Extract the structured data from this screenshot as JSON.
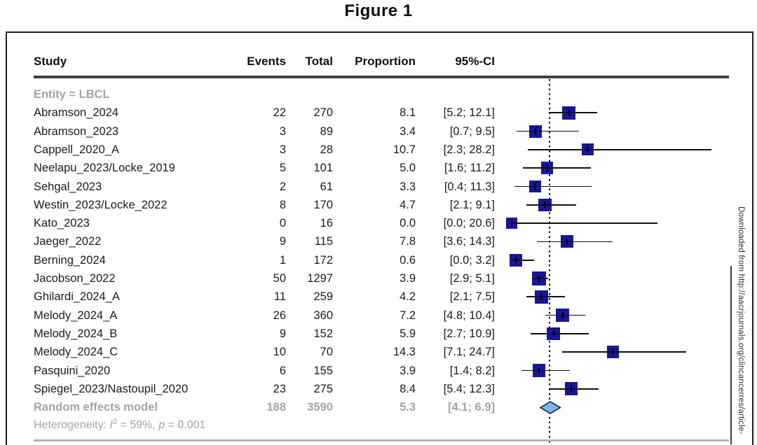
{
  "figure": {
    "title": "Figure 1"
  },
  "table": {
    "columns": [
      "Study",
      "Events",
      "Total",
      "Proportion",
      "95%-CI"
    ]
  },
  "chart_data": {
    "type": "scatter",
    "variant": "forest-plot-of-proportions",
    "title": "Figure 1",
    "group_label": "Entity = LBCL",
    "xlim": [
      0,
      30
    ],
    "reference_line": 5.3,
    "grid": "off",
    "legend": "none",
    "marker_color": "#16169b",
    "diamond_fill": "#74b9e8",
    "diamond_stroke": "#1a1a40",
    "rows": [
      {
        "study": "Abramson_2024",
        "events": "22",
        "total": "270",
        "proportion": "8.1",
        "ci_text": "[5.2; 12.1]",
        "estimate": 8.1,
        "ci_lower": 5.2,
        "ci_upper": 12.1
      },
      {
        "study": "Abramson_2023",
        "events": "3",
        "total": "89",
        "proportion": "3.4",
        "ci_text": "[0.7; 9.5]",
        "estimate": 3.4,
        "ci_lower": 0.7,
        "ci_upper": 9.5
      },
      {
        "study": "Cappell_2020_A",
        "events": "3",
        "total": "28",
        "proportion": "10.7",
        "ci_text": "[2.3; 28.2]",
        "estimate": 10.7,
        "ci_lower": 2.3,
        "ci_upper": 28.2
      },
      {
        "study": "Neelapu_2023/Locke_2019",
        "events": "5",
        "total": "101",
        "proportion": "5.0",
        "ci_text": "[1.6; 11.2]",
        "estimate": 5.0,
        "ci_lower": 1.6,
        "ci_upper": 11.2
      },
      {
        "study": "Sehgal_2023",
        "events": "2",
        "total": "61",
        "proportion": "3.3",
        "ci_text": "[0.4; 11.3]",
        "estimate": 3.3,
        "ci_lower": 0.4,
        "ci_upper": 11.3
      },
      {
        "study": "Westin_2023/Locke_2022",
        "events": "8",
        "total": "170",
        "proportion": "4.7",
        "ci_text": "[2.1; 9.1]",
        "estimate": 4.7,
        "ci_lower": 2.1,
        "ci_upper": 9.1
      },
      {
        "study": "Kato_2023",
        "events": "0",
        "total": "16",
        "proportion": "0.0",
        "ci_text": "[0.0; 20.6]",
        "estimate": 0.0,
        "ci_lower": 0.0,
        "ci_upper": 20.6
      },
      {
        "study": "Jaeger_2022",
        "events": "9",
        "total": "115",
        "proportion": "7.8",
        "ci_text": "[3.6; 14.3]",
        "estimate": 7.8,
        "ci_lower": 3.6,
        "ci_upper": 14.3
      },
      {
        "study": "Berning_2024",
        "events": "1",
        "total": "172",
        "proportion": "0.6",
        "ci_text": "[0.0; 3.2]",
        "estimate": 0.6,
        "ci_lower": 0.0,
        "ci_upper": 3.2
      },
      {
        "study": "Jacobson_2022",
        "events": "50",
        "total": "1297",
        "proportion": "3.9",
        "ci_text": "[2.9; 5.1]",
        "estimate": 3.9,
        "ci_lower": 2.9,
        "ci_upper": 5.1
      },
      {
        "study": "Ghilardi_2024_A",
        "events": "11",
        "total": "259",
        "proportion": "4.2",
        "ci_text": "[2.1; 7.5]",
        "estimate": 4.2,
        "ci_lower": 2.1,
        "ci_upper": 7.5
      },
      {
        "study": "Melody_2024_A",
        "events": "26",
        "total": "360",
        "proportion": "7.2",
        "ci_text": "[4.8; 10.4]",
        "estimate": 7.2,
        "ci_lower": 4.8,
        "ci_upper": 10.4
      },
      {
        "study": "Melody_2024_B",
        "events": "9",
        "total": "152",
        "proportion": "5.9",
        "ci_text": "[2.7; 10.9]",
        "estimate": 5.9,
        "ci_lower": 2.7,
        "ci_upper": 10.9
      },
      {
        "study": "Melody_2024_C",
        "events": "10",
        "total": "70",
        "proportion": "14.3",
        "ci_text": "[7.1; 24.7]",
        "estimate": 14.3,
        "ci_lower": 7.1,
        "ci_upper": 24.7
      },
      {
        "study": "Pasquini_2020",
        "events": "6",
        "total": "155",
        "proportion": "3.9",
        "ci_text": "[1.4; 8.2]",
        "estimate": 3.9,
        "ci_lower": 1.4,
        "ci_upper": 8.2
      },
      {
        "study": "Spiegel_2023/Nastoupil_2020",
        "events": "23",
        "total": "275",
        "proportion": "8.4",
        "ci_text": "[5.4; 12.3]",
        "estimate": 8.4,
        "ci_lower": 5.4,
        "ci_upper": 12.3
      }
    ],
    "summary_row": {
      "study": "Random effects model",
      "events": "188",
      "total": "3590",
      "proportion": "5.3",
      "ci_text": "[4.1; 6.9]",
      "estimate": 5.3,
      "ci_lower": 4.1,
      "ci_upper": 6.9
    },
    "heterogeneity_text": "Heterogeneity: I^2 = 59%, p = 0.001"
  },
  "heterogeneity": {
    "label": "Heterogeneity: ",
    "i_symbol": "I",
    "i_sup": "2",
    "i_value": " = 59%, ",
    "p_symbol": "p",
    "p_value": " = 0.001"
  },
  "watermark": {
    "text": "Downloaded from http://aacrjournals.org/clincancerres/article-"
  }
}
